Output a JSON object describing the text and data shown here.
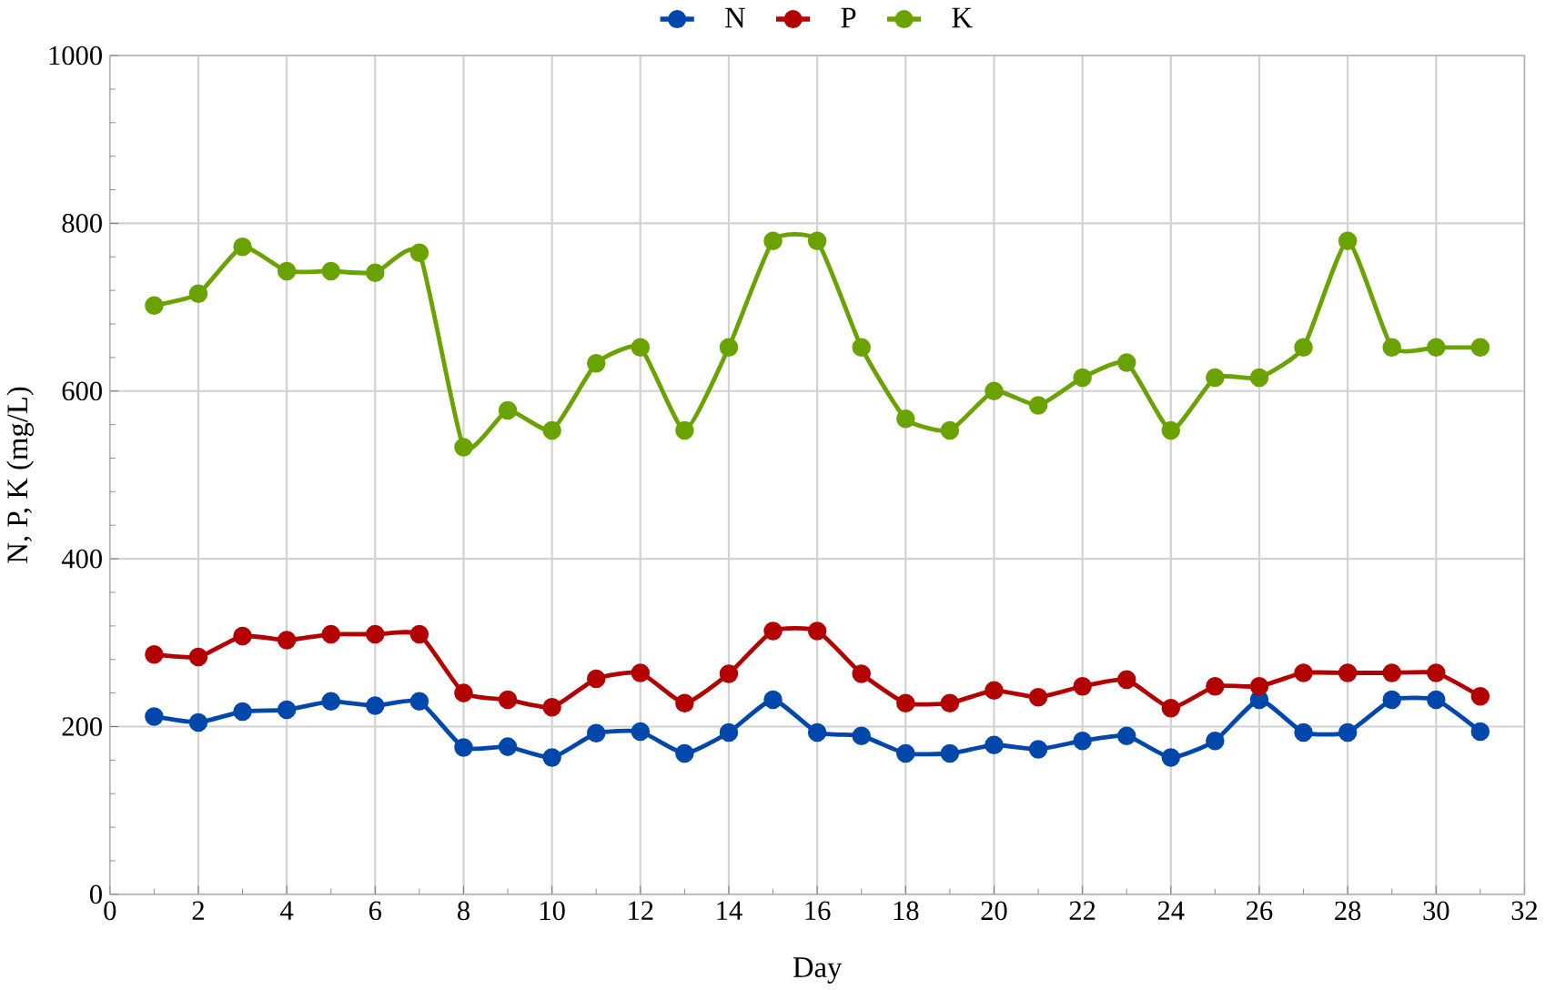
{
  "chart_data": {
    "type": "line",
    "xlabel": "Day",
    "ylabel": "N, P, K (mg/L)",
    "x": [
      1,
      2,
      3,
      4,
      5,
      6,
      7,
      8,
      9,
      10,
      11,
      12,
      13,
      14,
      15,
      16,
      17,
      18,
      19,
      20,
      21,
      22,
      23,
      24,
      25,
      26,
      27,
      28,
      29,
      30,
      31
    ],
    "series": [
      {
        "name": "N",
        "color": "#0047ab",
        "values": [
          212,
          205,
          218,
          220,
          230,
          225,
          230,
          175,
          176,
          163,
          192,
          194,
          168,
          193,
          232,
          193,
          189,
          168,
          168,
          178,
          173,
          183,
          189,
          163,
          183,
          232,
          193,
          193,
          232,
          232,
          194
        ]
      },
      {
        "name": "P",
        "color": "#b30000",
        "values": [
          286,
          283,
          308,
          303,
          310,
          310,
          310,
          240,
          232,
          223,
          257,
          264,
          228,
          263,
          314,
          314,
          263,
          228,
          228,
          243,
          235,
          248,
          256,
          222,
          248,
          248,
          264,
          264,
          264,
          264,
          236
        ]
      },
      {
        "name": "K",
        "color": "#6aa200",
        "values": [
          702,
          716,
          772,
          743,
          743,
          741,
          765,
          533,
          577,
          553,
          633,
          652,
          553,
          652,
          779,
          779,
          652,
          567,
          553,
          600,
          583,
          616,
          634,
          553,
          616,
          616,
          652,
          779,
          652,
          652,
          652
        ]
      }
    ],
    "xlim": [
      0,
      32
    ],
    "ylim": [
      0,
      1000
    ],
    "xticks": [
      0,
      2,
      4,
      6,
      8,
      10,
      12,
      14,
      16,
      18,
      20,
      22,
      24,
      26,
      28,
      30,
      32
    ],
    "yticks": [
      0,
      200,
      400,
      600,
      800,
      1000
    ],
    "grid": true,
    "legend": "top",
    "marker": "circle",
    "line_style": "solid"
  }
}
